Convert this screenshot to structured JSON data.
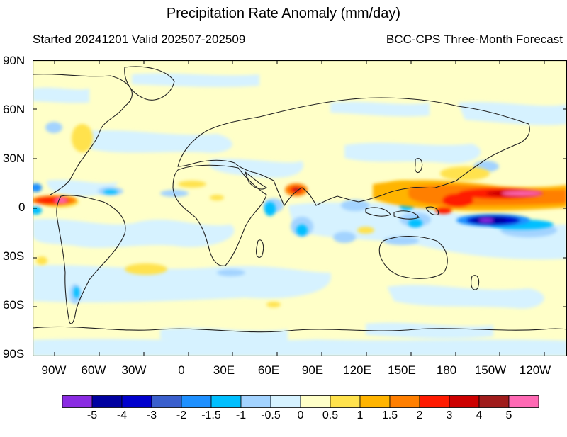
{
  "title": "Precipitation Rate Anomaly (mm/day)",
  "subtitle_left": "Started 20241201  Valid 202507-202509",
  "subtitle_right": "BCC-CPS Three-Month Forecast",
  "lat_labels": [
    "90N",
    "60N",
    "30N",
    "0",
    "30S",
    "60S",
    "90S"
  ],
  "lon_labels": [
    "90W",
    "60W",
    "30W",
    "0",
    "30E",
    "60E",
    "90E",
    "120E",
    "150E",
    "180",
    "150W",
    "120W"
  ],
  "colorbar": {
    "labels": [
      "-5",
      "-4",
      "-3",
      "-2",
      "-1.5",
      "-1",
      "-0.5",
      "0",
      "0.5",
      "1",
      "1.5",
      "2",
      "3",
      "4",
      "5"
    ],
    "colors": [
      "#8a2be2",
      "#0000a0",
      "#0000cd",
      "#3a5fcd",
      "#1e90ff",
      "#00bfff",
      "#a3d3ff",
      "#d6f2ff",
      "#ffffc8",
      "#ffe24d",
      "#ffb400",
      "#ff7f00",
      "#ff1a00",
      "#cd0000",
      "#a01c1c",
      "#ff69b4"
    ]
  }
}
